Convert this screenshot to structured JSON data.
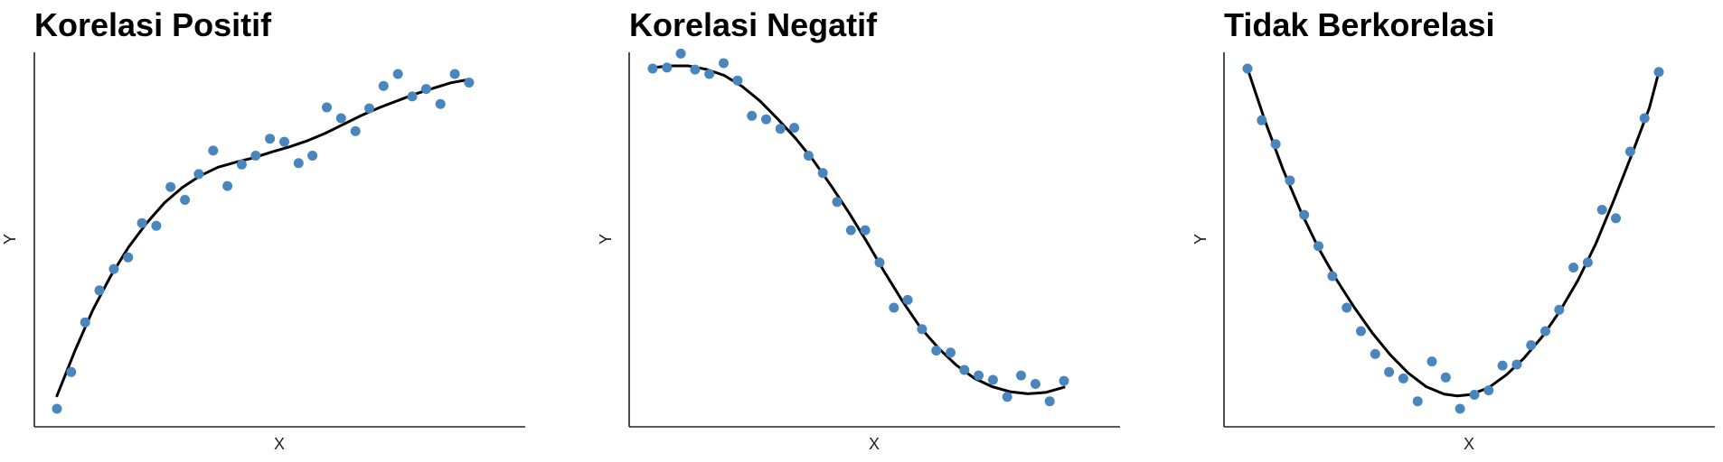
{
  "colors": {
    "point": "#4A86BE",
    "line": "#000000",
    "axis": "#222222"
  },
  "chart_data": [
    {
      "type": "scatter",
      "title": "Korelasi Positif",
      "xlabel": "X",
      "ylabel": "Y",
      "xlim": [
        0,
        1
      ],
      "ylim": [
        0,
        1
      ],
      "grid": false,
      "points": [
        {
          "x": 0.0,
          "y": 0.0
        },
        {
          "x": 0.032,
          "y": 0.108
        },
        {
          "x": 0.063,
          "y": 0.254
        },
        {
          "x": 0.095,
          "y": 0.348
        },
        {
          "x": 0.127,
          "y": 0.411
        },
        {
          "x": 0.159,
          "y": 0.445
        },
        {
          "x": 0.19,
          "y": 0.546
        },
        {
          "x": 0.222,
          "y": 0.538
        },
        {
          "x": 0.254,
          "y": 0.652
        },
        {
          "x": 0.286,
          "y": 0.614
        },
        {
          "x": 0.317,
          "y": 0.69
        },
        {
          "x": 0.349,
          "y": 0.759
        },
        {
          "x": 0.381,
          "y": 0.655
        },
        {
          "x": 0.413,
          "y": 0.718
        },
        {
          "x": 0.444,
          "y": 0.744
        },
        {
          "x": 0.476,
          "y": 0.794
        },
        {
          "x": 0.508,
          "y": 0.785
        },
        {
          "x": 0.54,
          "y": 0.722
        },
        {
          "x": 0.571,
          "y": 0.744
        },
        {
          "x": 0.603,
          "y": 0.886
        },
        {
          "x": 0.635,
          "y": 0.854
        },
        {
          "x": 0.667,
          "y": 0.816
        },
        {
          "x": 0.698,
          "y": 0.883
        },
        {
          "x": 0.73,
          "y": 0.949
        },
        {
          "x": 0.762,
          "y": 0.984
        },
        {
          "x": 0.794,
          "y": 0.918
        },
        {
          "x": 0.825,
          "y": 0.94
        },
        {
          "x": 0.857,
          "y": 0.896
        },
        {
          "x": 0.889,
          "y": 0.984
        },
        {
          "x": 0.921,
          "y": 0.959
        }
      ],
      "trend": [
        {
          "x": 0.0,
          "y": 0.038
        },
        {
          "x": 0.04,
          "y": 0.17
        },
        {
          "x": 0.08,
          "y": 0.29
        },
        {
          "x": 0.12,
          "y": 0.39
        },
        {
          "x": 0.16,
          "y": 0.475
        },
        {
          "x": 0.2,
          "y": 0.545
        },
        {
          "x": 0.24,
          "y": 0.605
        },
        {
          "x": 0.28,
          "y": 0.65
        },
        {
          "x": 0.32,
          "y": 0.685
        },
        {
          "x": 0.36,
          "y": 0.71
        },
        {
          "x": 0.4,
          "y": 0.725
        },
        {
          "x": 0.44,
          "y": 0.738
        },
        {
          "x": 0.48,
          "y": 0.755
        },
        {
          "x": 0.52,
          "y": 0.77
        },
        {
          "x": 0.56,
          "y": 0.788
        },
        {
          "x": 0.6,
          "y": 0.81
        },
        {
          "x": 0.64,
          "y": 0.836
        },
        {
          "x": 0.68,
          "y": 0.862
        },
        {
          "x": 0.72,
          "y": 0.885
        },
        {
          "x": 0.76,
          "y": 0.905
        },
        {
          "x": 0.8,
          "y": 0.925
        },
        {
          "x": 0.84,
          "y": 0.942
        },
        {
          "x": 0.88,
          "y": 0.958
        },
        {
          "x": 0.921,
          "y": 0.968
        }
      ]
    },
    {
      "type": "scatter",
      "title": "Korelasi Negatif",
      "xlabel": "X",
      "ylabel": "Y",
      "xlim": [
        0,
        1
      ],
      "ylim": [
        0,
        1
      ],
      "grid": false,
      "points": [
        {
          "x": 0.0,
          "y": 1.0
        },
        {
          "x": 0.032,
          "y": 1.003
        },
        {
          "x": 0.063,
          "y": 1.044
        },
        {
          "x": 0.095,
          "y": 0.997
        },
        {
          "x": 0.127,
          "y": 0.984
        },
        {
          "x": 0.159,
          "y": 1.016
        },
        {
          "x": 0.19,
          "y": 0.965
        },
        {
          "x": 0.222,
          "y": 0.861
        },
        {
          "x": 0.254,
          "y": 0.851
        },
        {
          "x": 0.286,
          "y": 0.823
        },
        {
          "x": 0.317,
          "y": 0.826
        },
        {
          "x": 0.349,
          "y": 0.744
        },
        {
          "x": 0.381,
          "y": 0.693
        },
        {
          "x": 0.413,
          "y": 0.608
        },
        {
          "x": 0.444,
          "y": 0.525
        },
        {
          "x": 0.476,
          "y": 0.525
        },
        {
          "x": 0.508,
          "y": 0.43
        },
        {
          "x": 0.54,
          "y": 0.297
        },
        {
          "x": 0.571,
          "y": 0.32
        },
        {
          "x": 0.603,
          "y": 0.234
        },
        {
          "x": 0.635,
          "y": 0.171
        },
        {
          "x": 0.667,
          "y": 0.165
        },
        {
          "x": 0.698,
          "y": 0.114
        },
        {
          "x": 0.73,
          "y": 0.098
        },
        {
          "x": 0.762,
          "y": 0.085
        },
        {
          "x": 0.794,
          "y": 0.035
        },
        {
          "x": 0.825,
          "y": 0.098
        },
        {
          "x": 0.857,
          "y": 0.073
        },
        {
          "x": 0.889,
          "y": 0.022
        },
        {
          "x": 0.921,
          "y": 0.082
        }
      ],
      "trend": [
        {
          "x": 0.0,
          "y": 1.003
        },
        {
          "x": 0.04,
          "y": 1.008
        },
        {
          "x": 0.08,
          "y": 1.008
        },
        {
          "x": 0.12,
          "y": 0.998
        },
        {
          "x": 0.16,
          "y": 0.98
        },
        {
          "x": 0.2,
          "y": 0.948
        },
        {
          "x": 0.24,
          "y": 0.905
        },
        {
          "x": 0.28,
          "y": 0.852
        },
        {
          "x": 0.32,
          "y": 0.795
        },
        {
          "x": 0.36,
          "y": 0.73
        },
        {
          "x": 0.4,
          "y": 0.655
        },
        {
          "x": 0.44,
          "y": 0.575
        },
        {
          "x": 0.48,
          "y": 0.49
        },
        {
          "x": 0.52,
          "y": 0.4
        },
        {
          "x": 0.56,
          "y": 0.315
        },
        {
          "x": 0.6,
          "y": 0.238
        },
        {
          "x": 0.64,
          "y": 0.178
        },
        {
          "x": 0.68,
          "y": 0.128
        },
        {
          "x": 0.72,
          "y": 0.09
        },
        {
          "x": 0.76,
          "y": 0.065
        },
        {
          "x": 0.8,
          "y": 0.05
        },
        {
          "x": 0.84,
          "y": 0.044
        },
        {
          "x": 0.88,
          "y": 0.048
        },
        {
          "x": 0.921,
          "y": 0.063
        }
      ]
    },
    {
      "type": "scatter",
      "title": "Tidak Berkorelasi",
      "xlabel": "X",
      "ylabel": "Y",
      "xlim": [
        0,
        1
      ],
      "ylim": [
        0,
        1
      ],
      "grid": false,
      "points": [
        {
          "x": 0.0,
          "y": 1.0
        },
        {
          "x": 0.032,
          "y": 0.848
        },
        {
          "x": 0.063,
          "y": 0.778
        },
        {
          "x": 0.095,
          "y": 0.671
        },
        {
          "x": 0.127,
          "y": 0.57
        },
        {
          "x": 0.159,
          "y": 0.478
        },
        {
          "x": 0.19,
          "y": 0.39
        },
        {
          "x": 0.222,
          "y": 0.297
        },
        {
          "x": 0.254,
          "y": 0.228
        },
        {
          "x": 0.286,
          "y": 0.161
        },
        {
          "x": 0.317,
          "y": 0.108
        },
        {
          "x": 0.349,
          "y": 0.089
        },
        {
          "x": 0.381,
          "y": 0.022
        },
        {
          "x": 0.413,
          "y": 0.139
        },
        {
          "x": 0.444,
          "y": 0.092
        },
        {
          "x": 0.476,
          "y": 0.0
        },
        {
          "x": 0.508,
          "y": 0.041
        },
        {
          "x": 0.54,
          "y": 0.054
        },
        {
          "x": 0.571,
          "y": 0.127
        },
        {
          "x": 0.603,
          "y": 0.13
        },
        {
          "x": 0.635,
          "y": 0.187
        },
        {
          "x": 0.667,
          "y": 0.228
        },
        {
          "x": 0.698,
          "y": 0.291
        },
        {
          "x": 0.73,
          "y": 0.415
        },
        {
          "x": 0.762,
          "y": 0.43
        },
        {
          "x": 0.794,
          "y": 0.585
        },
        {
          "x": 0.825,
          "y": 0.56
        },
        {
          "x": 0.857,
          "y": 0.756
        },
        {
          "x": 0.889,
          "y": 0.854
        },
        {
          "x": 0.921,
          "y": 0.99
        }
      ],
      "trend": [
        {
          "x": 0.0,
          "y": 1.0
        },
        {
          "x": 0.04,
          "y": 0.843
        },
        {
          "x": 0.08,
          "y": 0.702
        },
        {
          "x": 0.12,
          "y": 0.578
        },
        {
          "x": 0.16,
          "y": 0.47
        },
        {
          "x": 0.2,
          "y": 0.378
        },
        {
          "x": 0.24,
          "y": 0.296
        },
        {
          "x": 0.28,
          "y": 0.222
        },
        {
          "x": 0.32,
          "y": 0.158
        },
        {
          "x": 0.36,
          "y": 0.105
        },
        {
          "x": 0.4,
          "y": 0.065
        },
        {
          "x": 0.44,
          "y": 0.043
        },
        {
          "x": 0.47,
          "y": 0.038
        },
        {
          "x": 0.5,
          "y": 0.042
        },
        {
          "x": 0.54,
          "y": 0.062
        },
        {
          "x": 0.58,
          "y": 0.1
        },
        {
          "x": 0.62,
          "y": 0.15
        },
        {
          "x": 0.66,
          "y": 0.212
        },
        {
          "x": 0.7,
          "y": 0.288
        },
        {
          "x": 0.74,
          "y": 0.378
        },
        {
          "x": 0.78,
          "y": 0.485
        },
        {
          "x": 0.82,
          "y": 0.612
        },
        {
          "x": 0.86,
          "y": 0.745
        },
        {
          "x": 0.9,
          "y": 0.885
        },
        {
          "x": 0.921,
          "y": 0.99
        }
      ]
    }
  ]
}
